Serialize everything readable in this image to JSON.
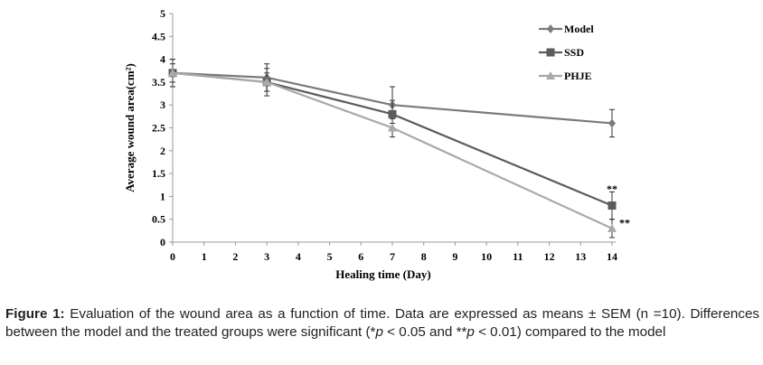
{
  "chart_data": {
    "type": "line",
    "xlabel": "Healing time (Day)",
    "ylabel": "Average wound area(cm²)",
    "x_ticks": [
      "0",
      "1",
      "2",
      "3",
      "4",
      "5",
      "6",
      "7",
      "8",
      "9",
      "10",
      "11",
      "12",
      "13",
      "14"
    ],
    "y_ticks": [
      "0",
      "0.5",
      "1",
      "1.5",
      "2",
      "2.5",
      "3",
      "3.5",
      "4",
      "4.5",
      "5"
    ],
    "xlim": [
      0,
      14
    ],
    "ylim": [
      0,
      5
    ],
    "legend_position": "top-right",
    "series": [
      {
        "name": "Model",
        "color": "#7a7a7a",
        "marker": "diamond",
        "x": [
          0,
          3,
          7,
          14
        ],
        "values": [
          3.7,
          3.6,
          3.0,
          2.6
        ],
        "error": [
          0.3,
          0.3,
          0.4,
          0.3
        ]
      },
      {
        "name": "SSD",
        "color": "#5c5c5c",
        "marker": "square",
        "x": [
          0,
          3,
          7,
          14
        ],
        "values": [
          3.7,
          3.5,
          2.8,
          0.8
        ],
        "error": [
          0.3,
          0.3,
          0.3,
          0.3
        ]
      },
      {
        "name": "PHJE",
        "color": "#a9a9a9",
        "marker": "triangle",
        "x": [
          0,
          3,
          7,
          14
        ],
        "values": [
          3.7,
          3.5,
          2.5,
          0.3
        ],
        "error": [
          0.2,
          0.2,
          0.2,
          0.2
        ]
      }
    ],
    "annotations": [
      {
        "text": "**",
        "x": 14,
        "y": 1.17
      },
      {
        "text": "**",
        "x": 14,
        "y": 0.42
      }
    ]
  },
  "caption": {
    "label": "Figure 1:",
    "text_part1": " Evaluation of the wound area as a function of time. Data are expressed as means ± SEM (n =10). Differences between the model and the treated groups were significant (*",
    "p1": "p",
    "text_part2": " < 0.05 and **",
    "p2": "p",
    "text_part3": " < 0.01) compared to the model"
  }
}
